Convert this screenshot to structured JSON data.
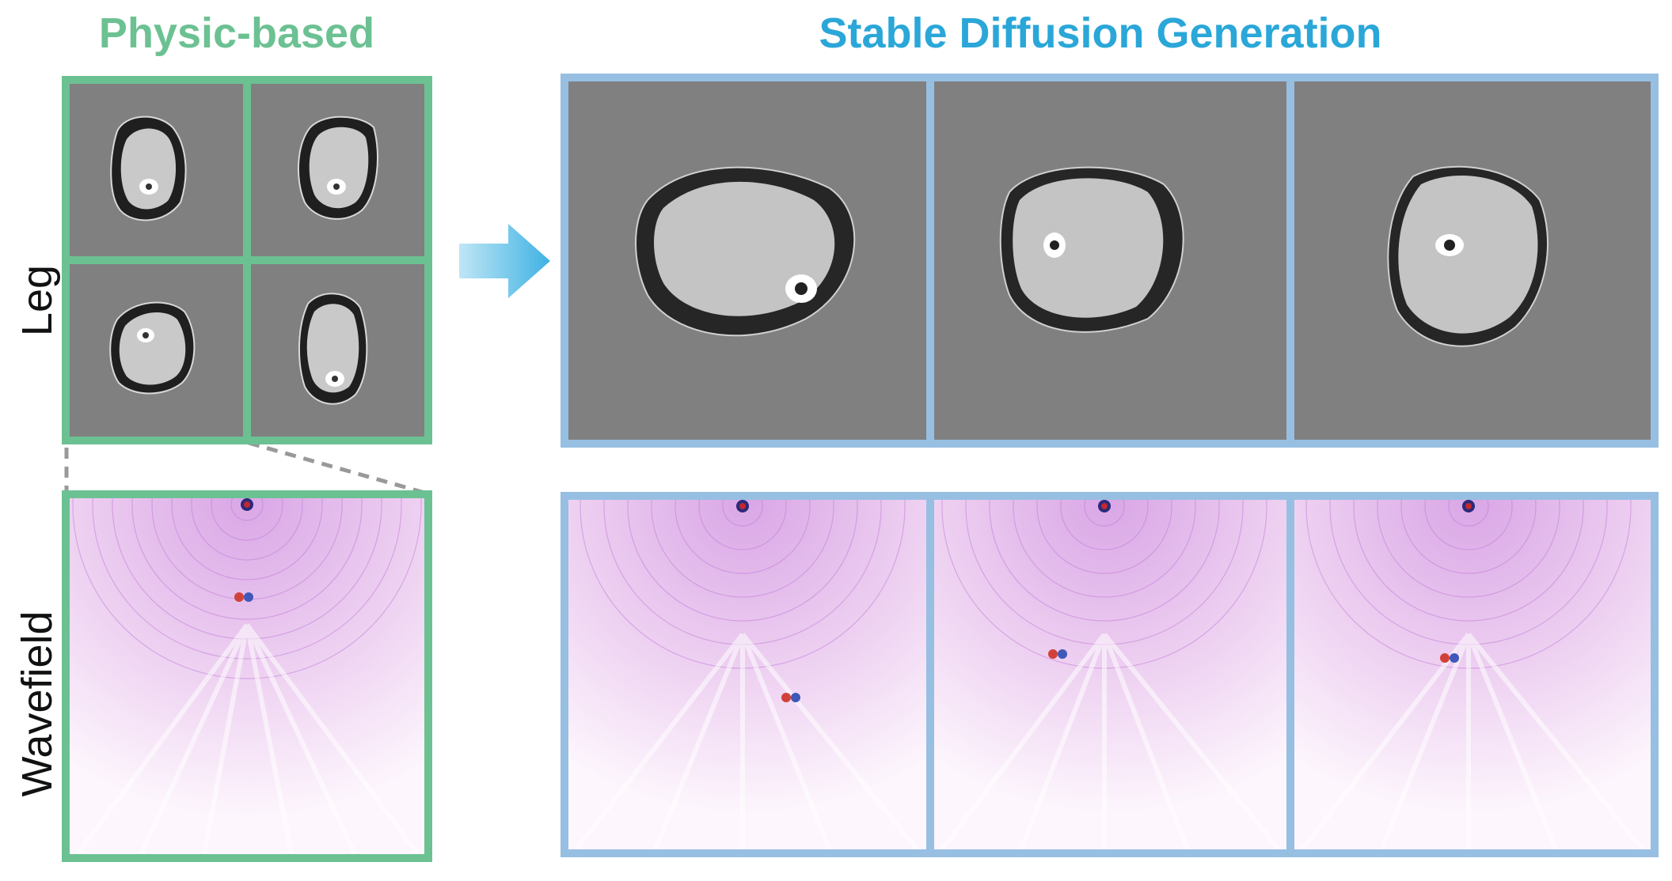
{
  "headings": {
    "physics": "Physic-based",
    "stable_diffusion": "Stable Diffusion Generation"
  },
  "row_labels": {
    "leg": "Leg",
    "wavefield": "Wavefield"
  },
  "colors": {
    "physics_accent": "#6cc192",
    "sd_heading": "#2aa7d8",
    "sd_frame": "#97bfe2",
    "ct_background": "#808080"
  },
  "icons": {
    "arrow": "right-arrow-icon",
    "connector": "zoom-dashed-lines"
  }
}
